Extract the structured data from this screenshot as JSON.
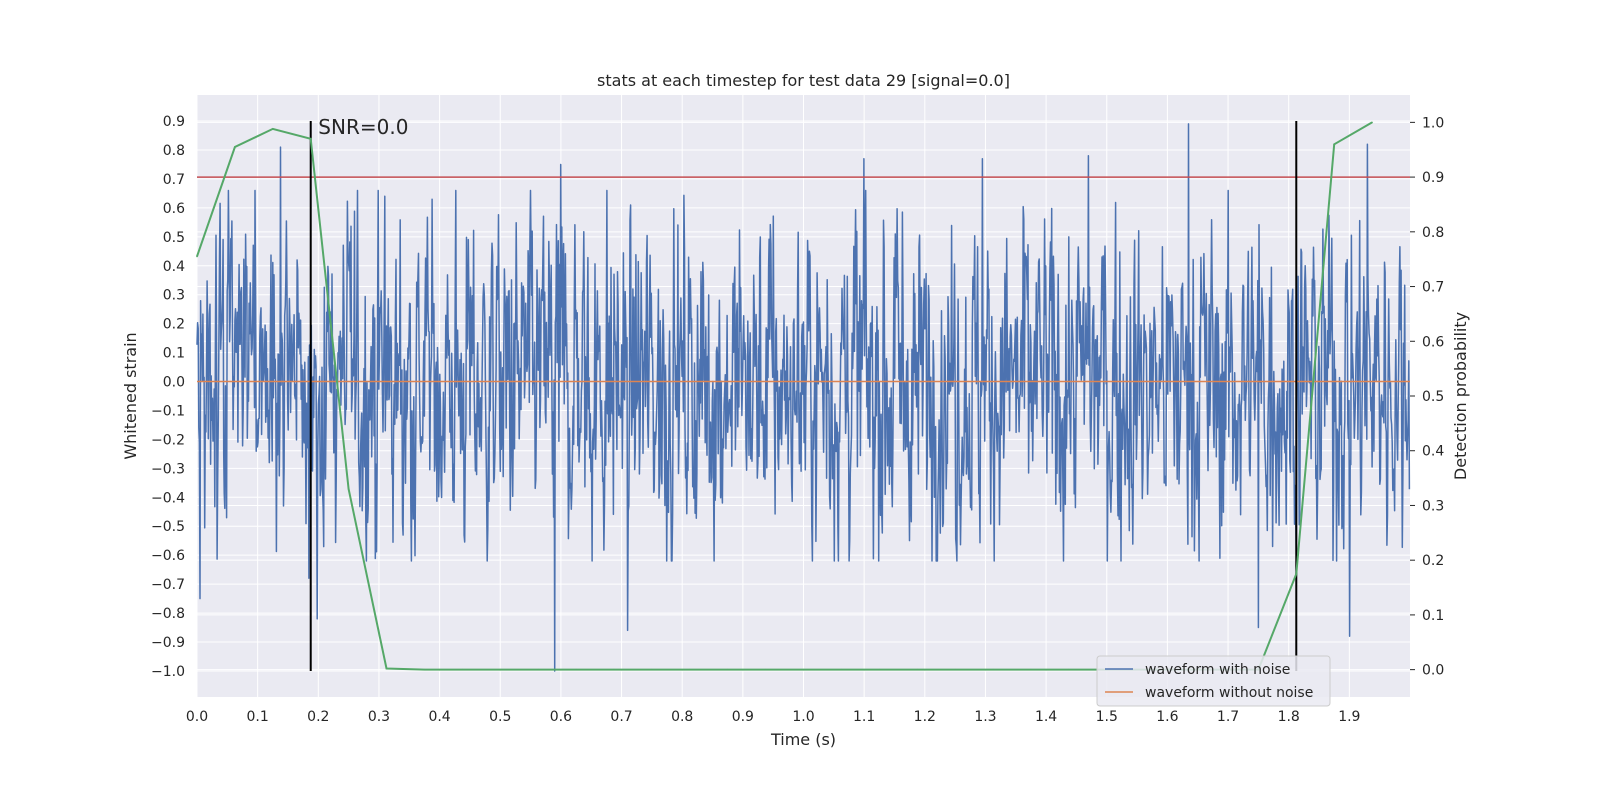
{
  "chart_data": {
    "type": "line",
    "title": "stats at each timestep for test data 29 [signal=0.0]",
    "xlabel": "Time (s)",
    "ylabel": "Whitened strain",
    "y2label": "Detection probability",
    "xlim": [
      0.0,
      2.0
    ],
    "ylim": [
      -1.09,
      0.99
    ],
    "y2lim": [
      -0.05,
      1.05
    ],
    "x_ticks": [
      0.0,
      0.1,
      0.2,
      0.3,
      0.4,
      0.5,
      0.6,
      0.7,
      0.8,
      0.9,
      1.0,
      1.1,
      1.2,
      1.3,
      1.4,
      1.5,
      1.6,
      1.7,
      1.8,
      1.9
    ],
    "x_tick_labels": [
      "0.0",
      "0.1",
      "0.2",
      "0.3",
      "0.4",
      "0.5",
      "0.6",
      "0.7",
      "0.8",
      "0.9",
      "1.0",
      "1.1",
      "1.2",
      "1.3",
      "1.4",
      "1.5",
      "1.6",
      "1.7",
      "1.8",
      "1.9"
    ],
    "y_ticks": [
      0.9,
      0.8,
      0.7,
      0.6,
      0.5,
      0.4,
      0.3,
      0.2,
      0.1,
      0.0,
      -0.1,
      -0.2,
      -0.3,
      -0.4,
      -0.5,
      -0.6,
      -0.7,
      -0.8,
      -0.9,
      -1.0
    ],
    "y_tick_labels": [
      "0.9",
      "0.8",
      "0.7",
      "0.6",
      "0.5",
      "0.4",
      "0.3",
      "0.2",
      "0.1",
      "0.0",
      "−0.1",
      "−0.2",
      "−0.3",
      "−0.4",
      "−0.5",
      "−0.6",
      "−0.7",
      "−0.8",
      "−0.9",
      "−1.0"
    ],
    "y2_ticks": [
      1.0,
      0.9,
      0.8,
      0.7,
      0.6,
      0.5,
      0.4,
      0.3,
      0.2,
      0.1,
      0.0
    ],
    "y2_tick_labels": [
      "1.0",
      "0.9",
      "0.8",
      "0.7",
      "0.6",
      "0.5",
      "0.4",
      "0.3",
      "0.2",
      "0.1",
      "0.0"
    ],
    "grid": true,
    "legend_position": "lower-right",
    "series": [
      {
        "name": "waveform with noise",
        "color": "#4c72b0",
        "axis": "left",
        "noise": {
          "n_samples": 2048,
          "amplitude": 0.28,
          "spikes": [
            [
              0.005,
              -0.75
            ],
            [
              0.138,
              0.81
            ],
            [
              0.185,
              -0.68
            ],
            [
              0.198,
              -0.82
            ],
            [
              0.31,
              0.64
            ],
            [
              0.59,
              -1.0
            ],
            [
              0.6,
              0.75
            ],
            [
              0.71,
              -0.86
            ],
            [
              1.1,
              0.77
            ],
            [
              1.295,
              0.77
            ],
            [
              1.47,
              0.78
            ],
            [
              1.635,
              0.89
            ],
            [
              1.75,
              -0.85
            ],
            [
              1.9,
              -0.88
            ],
            [
              1.93,
              0.82
            ]
          ]
        }
      },
      {
        "name": "waveform without noise",
        "color": "#dd8452",
        "axis": "left",
        "x": [
          0.0,
          2.0
        ],
        "values": [
          0.0,
          0.0
        ]
      },
      {
        "name": "Detection probability",
        "color": "#55a868",
        "axis": "right",
        "x": [
          0.0,
          0.0625,
          0.125,
          0.1875,
          0.25,
          0.3125,
          0.375,
          0.4375,
          0.5,
          0.5625,
          0.625,
          0.6875,
          0.75,
          0.8125,
          0.875,
          0.9375,
          1.0,
          1.0625,
          1.125,
          1.1875,
          1.25,
          1.3125,
          1.375,
          1.4375,
          1.5,
          1.5625,
          1.625,
          1.6875,
          1.75,
          1.8125,
          1.875,
          1.9375
        ],
        "values": [
          0.755,
          0.955,
          0.988,
          0.97,
          0.33,
          0.002,
          0.0,
          0.0,
          0.0,
          0.0,
          0.0,
          0.0,
          0.0,
          0.0,
          0.0,
          0.0,
          0.0,
          0.0,
          0.0,
          0.0,
          0.0,
          0.0,
          0.0,
          0.0,
          0.0,
          0.0,
          0.0,
          0.0,
          0.0,
          0.175,
          0.96,
          1.0
        ]
      }
    ],
    "threshold": {
      "value": 0.9,
      "axis": "right",
      "color": "#c44e52"
    },
    "vlines": [
      {
        "x": 0.1875,
        "y_range": [
          -1.0,
          0.9
        ],
        "color": "#000000"
      },
      {
        "x": 1.8125,
        "y_range": [
          -1.0,
          0.9
        ],
        "color": "#000000"
      }
    ],
    "annotation": {
      "text": "SNR=0.0",
      "x": 0.2,
      "y": 0.88
    }
  }
}
